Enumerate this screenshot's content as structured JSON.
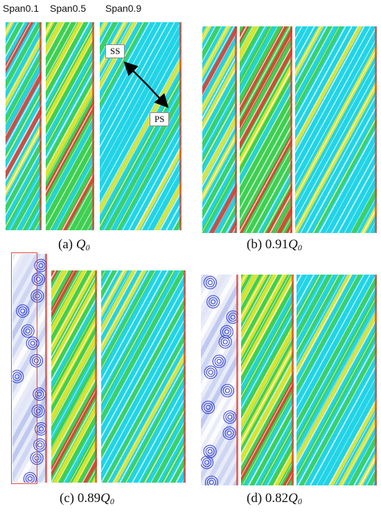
{
  "span_labels": [
    "Span0.1",
    "Span0.5",
    "Span0.9"
  ],
  "annotations": {
    "suction_side": "SS",
    "pressure_side": "PS"
  },
  "panels": [
    {
      "id": "a",
      "prefix": "(a) ",
      "coef": "",
      "q": "Q",
      "sub": "0"
    },
    {
      "id": "b",
      "prefix": "(b) ",
      "coef": "0.91",
      "q": "Q",
      "sub": "0"
    },
    {
      "id": "c",
      "prefix": "(c) ",
      "coef": "0.89",
      "q": "Q",
      "sub": "0"
    },
    {
      "id": "d",
      "prefix": "(d) ",
      "coef": "0.82",
      "q": "Q",
      "sub": "0"
    }
  ],
  "colors": {
    "low": "#1e2bd0",
    "low_mid": "#22d3e6",
    "mid": "#3fcf52",
    "high_mid": "#f3e62c",
    "high": "#e23a2a",
    "streamline": "#ffffff",
    "highlight_box": "#e0443e"
  }
}
